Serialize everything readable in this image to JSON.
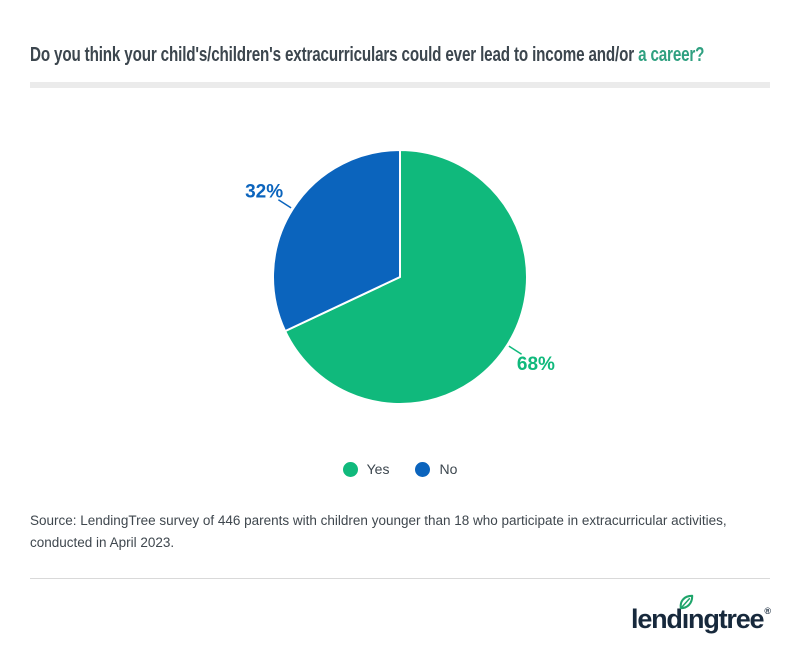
{
  "header": {
    "title_main": "Do you think your child's/children's extracurriculars could ever lead to income and/or",
    "title_highlight": " a career?",
    "title_color": "#3c464e",
    "highlight_color": "#2fa080"
  },
  "chart_data": {
    "type": "pie",
    "title": "Do you think your child's/children's extracurriculars could ever lead to income and/or a career?",
    "categories": [
      "Yes",
      "No"
    ],
    "values": [
      68,
      32
    ],
    "labels": [
      "68%",
      "32%"
    ],
    "colors": [
      "#10b97c",
      "#0b64bd"
    ],
    "start_angle_deg": -90,
    "direction": "clockwise",
    "slice_border_color": "#ffffff",
    "legend_position": "bottom",
    "legend_entries": [
      "Yes",
      "No"
    ]
  },
  "source": {
    "text": "Source: LendingTree survey of 446 parents with children younger than 18 who participate in extracurricular activities, conducted in April 2023."
  },
  "footer": {
    "logo": {
      "text_before_i": "lend",
      "i_char": "ı",
      "text_after_i": "ngtree",
      "registered_mark": "®"
    },
    "logo_color": "#17293c",
    "leaf_color": "#1fa56b"
  }
}
